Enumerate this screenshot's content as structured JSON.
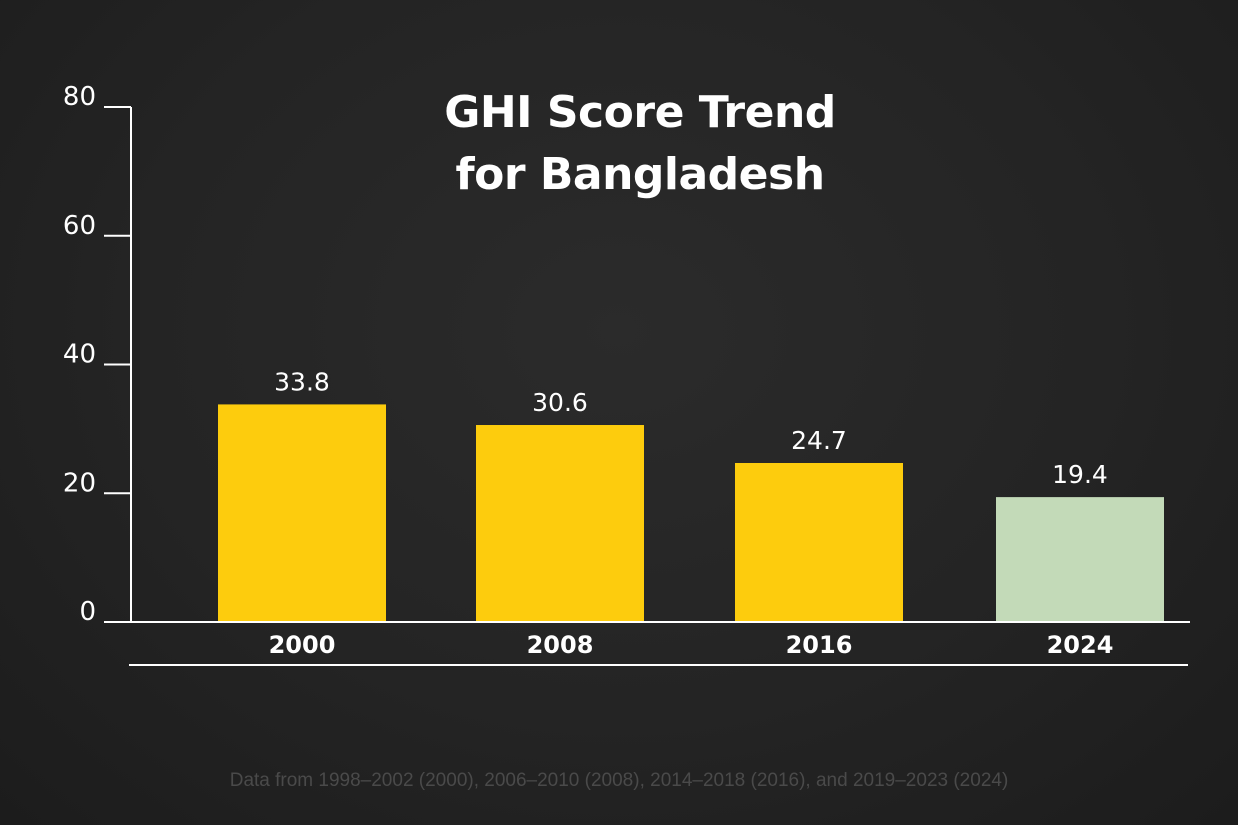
{
  "chart_data": {
    "type": "bar",
    "title_lines": [
      "GHI Score Trend",
      "for Bangladesh"
    ],
    "categories": [
      "2000",
      "2008",
      "2016",
      "2024"
    ],
    "values": [
      33.8,
      30.6,
      24.7,
      19.4
    ],
    "value_labels": [
      "33.8",
      "30.6",
      "24.7",
      "19.4"
    ],
    "bar_colors": [
      "#fdcc0d",
      "#fdcc0d",
      "#fdcc0d",
      "#c3dab8"
    ],
    "ylim": [
      0,
      80
    ],
    "yticks": [
      0,
      20,
      40,
      60,
      80
    ],
    "ytick_labels": [
      "0",
      "20",
      "40",
      "60",
      "80"
    ],
    "xlabel": "",
    "ylabel": "",
    "grid": false,
    "footnote": "Data from 1998–2002 (2000), 2006–2010 (2008), 2014–2018 (2016), and 2019–2023 (2024)"
  }
}
